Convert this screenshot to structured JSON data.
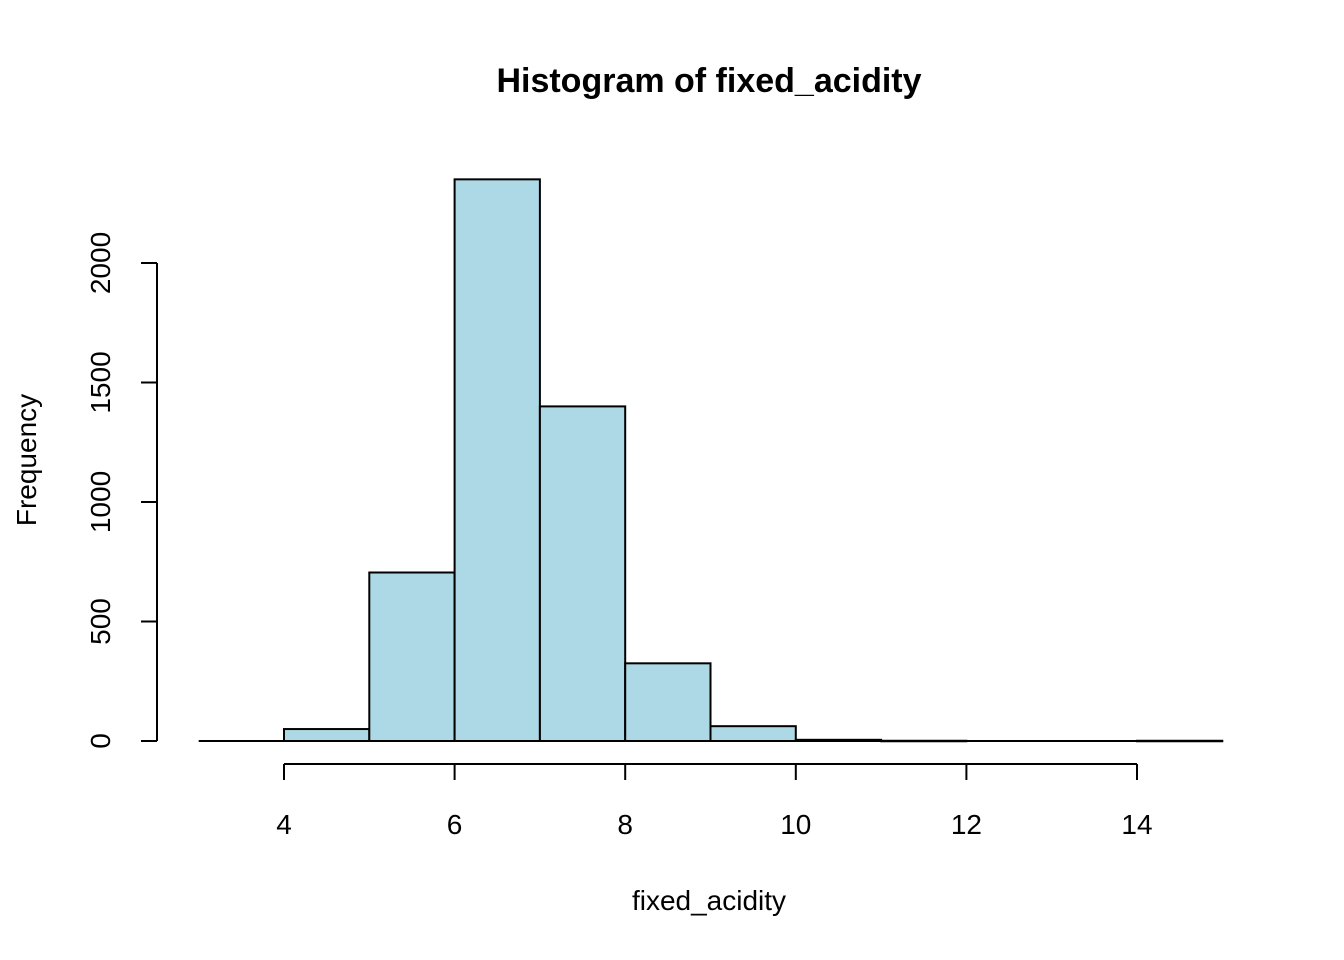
{
  "chart_data": {
    "type": "bar",
    "title": "Histogram of fixed_acidity",
    "xlabel": "fixed_acidity",
    "ylabel": "Frequency",
    "bins": [
      {
        "start": 3,
        "end": 4,
        "count": 0
      },
      {
        "start": 4,
        "end": 5,
        "count": 50
      },
      {
        "start": 5,
        "end": 6,
        "count": 705
      },
      {
        "start": 6,
        "end": 7,
        "count": 2350
      },
      {
        "start": 7,
        "end": 8,
        "count": 1400
      },
      {
        "start": 8,
        "end": 9,
        "count": 325
      },
      {
        "start": 9,
        "end": 10,
        "count": 62
      },
      {
        "start": 10,
        "end": 11,
        "count": 5
      },
      {
        "start": 11,
        "end": 12,
        "count": 1
      },
      {
        "start": 12,
        "end": 13,
        "count": 0
      },
      {
        "start": 13,
        "end": 14,
        "count": 0
      },
      {
        "start": 14,
        "end": 15,
        "count": 1
      }
    ],
    "xlim": [
      3,
      15
    ],
    "ylim": [
      0,
      2350
    ],
    "xticks": [
      4,
      6,
      8,
      10,
      12,
      14
    ],
    "yticks": [
      0,
      500,
      1000,
      1500,
      2000
    ],
    "bar_color": "#add8e6",
    "grid": false,
    "legend": "none"
  }
}
